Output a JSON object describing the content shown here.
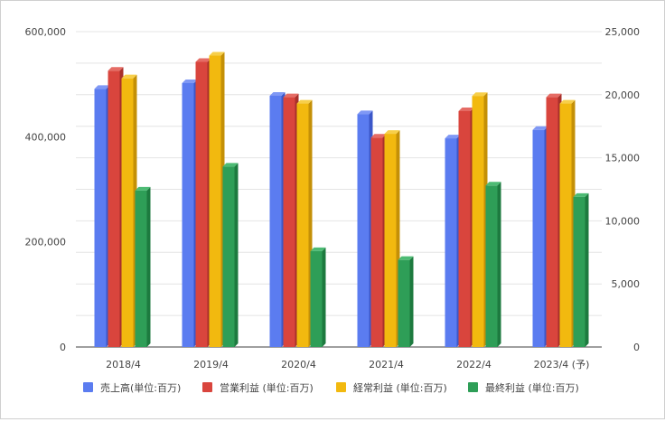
{
  "chart_data": {
    "type": "bar",
    "categories": [
      "2018/4",
      "2019/4",
      "2020/4",
      "2021/4",
      "2022/4",
      "2023/4 (予)"
    ],
    "series": [
      {
        "name": "売上高(単位:百万)",
        "axis": "left",
        "color": "#5b7cf0",
        "side": "#3b57c9",
        "top": "#7f98f5",
        "values": [
          491000,
          502000,
          478000,
          443000,
          397000,
          413000
        ]
      },
      {
        "name": "営業利益 (単位:百万)",
        "axis": "right",
        "color": "#d9453d",
        "side": "#a8302a",
        "top": "#e56c65",
        "values": [
          21900,
          22600,
          19800,
          16600,
          18700,
          19800
        ]
      },
      {
        "name": "経常利益 (単位:百万)",
        "axis": "right",
        "color": "#f2b90f",
        "side": "#c49007",
        "top": "#f7cf4a",
        "values": [
          21300,
          23100,
          19300,
          16900,
          19900,
          19300
        ]
      },
      {
        "name": "最終利益 (単位:百万)",
        "axis": "right",
        "color": "#2e9e57",
        "side": "#1d7a3f",
        "top": "#4dbb74",
        "values": [
          12400,
          14300,
          7600,
          6900,
          12800,
          11900
        ]
      }
    ],
    "y_left": {
      "min": 0,
      "max": 600000,
      "ticks": [
        "0",
        "200,000",
        "400,000",
        "600,000"
      ],
      "tick_values": [
        0,
        200000,
        400000,
        600000
      ]
    },
    "y_right": {
      "min": 0,
      "max": 25000,
      "ticks": [
        "0",
        "5,000",
        "10,000",
        "15,000",
        "20,000",
        "25,000"
      ],
      "tick_values": [
        0,
        5000,
        10000,
        15000,
        20000,
        25000
      ]
    },
    "grid": true,
    "legend": "bottom"
  }
}
